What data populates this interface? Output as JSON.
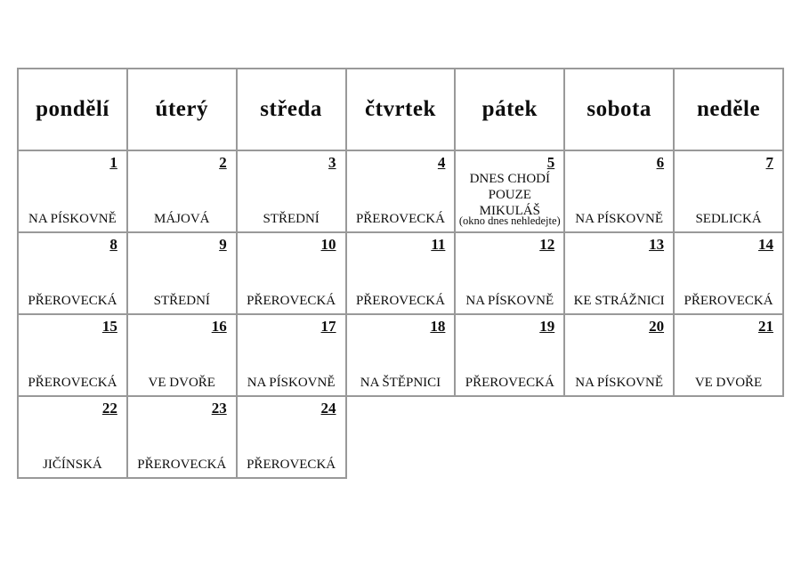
{
  "calendar": {
    "border_color": "#999999",
    "text_color": "#0d0d0d",
    "weekday_headers": [
      "pondělí",
      "úterý",
      "středa",
      "čtvrtek",
      "pátek",
      "sobota",
      "neděle"
    ],
    "days": [
      {
        "number": "1",
        "location": "NA PÍSKOVNĚ"
      },
      {
        "number": "2",
        "location": "MÁJOVÁ"
      },
      {
        "number": "3",
        "location": "STŘEDNÍ"
      },
      {
        "number": "4",
        "location": "PŘEROVECKÁ"
      },
      {
        "number": "5",
        "message_lines": [
          "DNES CHODÍ",
          "POUZE",
          "MIKULÁŠ"
        ],
        "note": "(okno dnes nehledejte)"
      },
      {
        "number": "6",
        "location": "NA PÍSKOVNĚ"
      },
      {
        "number": "7",
        "location": "SEDLICKÁ"
      },
      {
        "number": "8",
        "location": "PŘEROVECKÁ"
      },
      {
        "number": "9",
        "location": "STŘEDNÍ"
      },
      {
        "number": "10",
        "location": "PŘEROVECKÁ"
      },
      {
        "number": "11",
        "location": "PŘEROVECKÁ"
      },
      {
        "number": "12",
        "location": "NA PÍSKOVNĚ"
      },
      {
        "number": "13",
        "location": "KE STRÁŽNICI"
      },
      {
        "number": "14",
        "location": "PŘEROVECKÁ"
      },
      {
        "number": "15",
        "location": "PŘEROVECKÁ"
      },
      {
        "number": "16",
        "location": "VE DVOŘE"
      },
      {
        "number": "17",
        "location": "NA PÍSKOVNĚ"
      },
      {
        "number": "18",
        "location": "NA ŠTĚPNICI"
      },
      {
        "number": "19",
        "location": "PŘEROVECKÁ"
      },
      {
        "number": "20",
        "location": "NA PÍSKOVNĚ"
      },
      {
        "number": "21",
        "location": "VE DVOŘE"
      },
      {
        "number": "22",
        "location": "JIČÍNSKÁ"
      },
      {
        "number": "23",
        "location": "PŘEROVECKÁ"
      },
      {
        "number": "24",
        "location": "PŘEROVECKÁ"
      }
    ]
  }
}
